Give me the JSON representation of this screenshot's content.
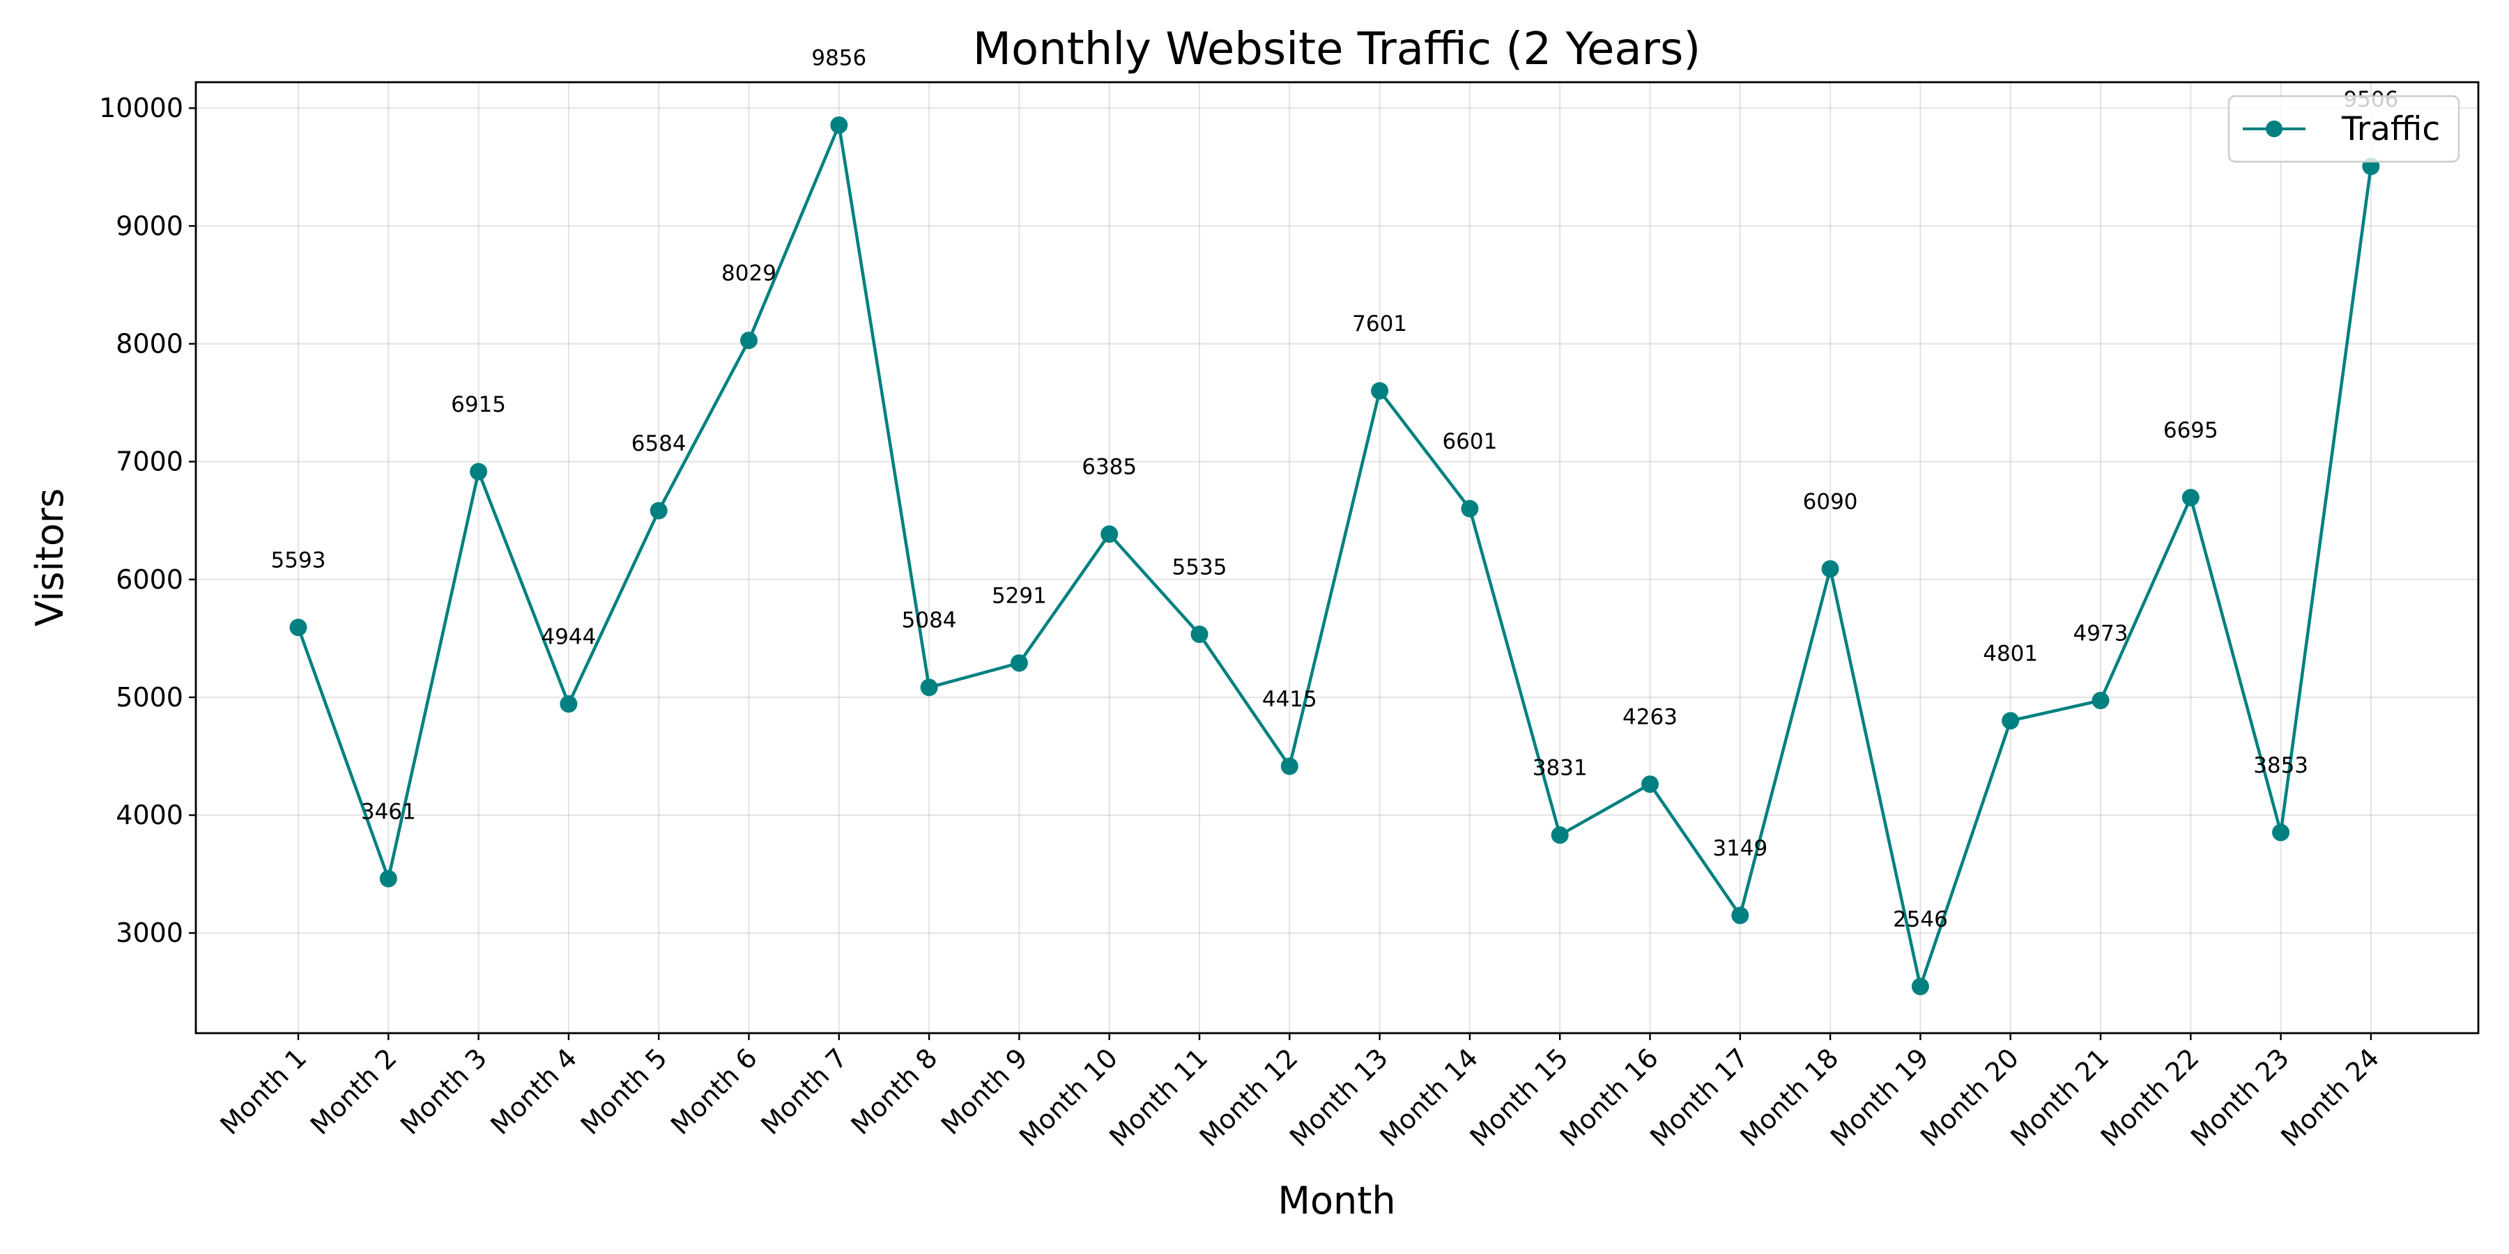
{
  "chart_data": {
    "type": "line",
    "title": "Monthly Website Traffic (2 Years)",
    "xlabel": "Month",
    "ylabel": "Visitors",
    "categories": [
      "Month 1",
      "Month 2",
      "Month 3",
      "Month 4",
      "Month 5",
      "Month 6",
      "Month 7",
      "Month 8",
      "Month 9",
      "Month 10",
      "Month 11",
      "Month 12",
      "Month 13",
      "Month 14",
      "Month 15",
      "Month 16",
      "Month 17",
      "Month 18",
      "Month 19",
      "Month 20",
      "Month 21",
      "Month 22",
      "Month 23",
      "Month 24"
    ],
    "series": [
      {
        "name": "Traffic",
        "color": "#008080",
        "values": [
          5593,
          3461,
          6915,
          4944,
          6584,
          8029,
          9856,
          5084,
          5291,
          6385,
          5535,
          4415,
          7601,
          6601,
          3831,
          4263,
          3149,
          6090,
          2546,
          4801,
          4973,
          6695,
          3853,
          9506
        ]
      }
    ],
    "data_labels": [
      "5593",
      "3461",
      "6915",
      "4944",
      "6584",
      "8029",
      "9856",
      "5084",
      "5291",
      "6385",
      "5535",
      "4415",
      "7601",
      "6601",
      "3831",
      "4263",
      "3149",
      "6090",
      "2546",
      "4801",
      "4973",
      "6695",
      "3853",
      "9506"
    ],
    "yticks": [
      3000,
      4000,
      5000,
      6000,
      7000,
      8000,
      9000,
      10000
    ],
    "ytick_labels": [
      "3000",
      "4000",
      "5000",
      "6000",
      "7000",
      "8000",
      "9000",
      "10000"
    ],
    "ylim": [
      2150,
      10220
    ],
    "grid": true,
    "legend_position": "top-right",
    "marker": "circle"
  }
}
